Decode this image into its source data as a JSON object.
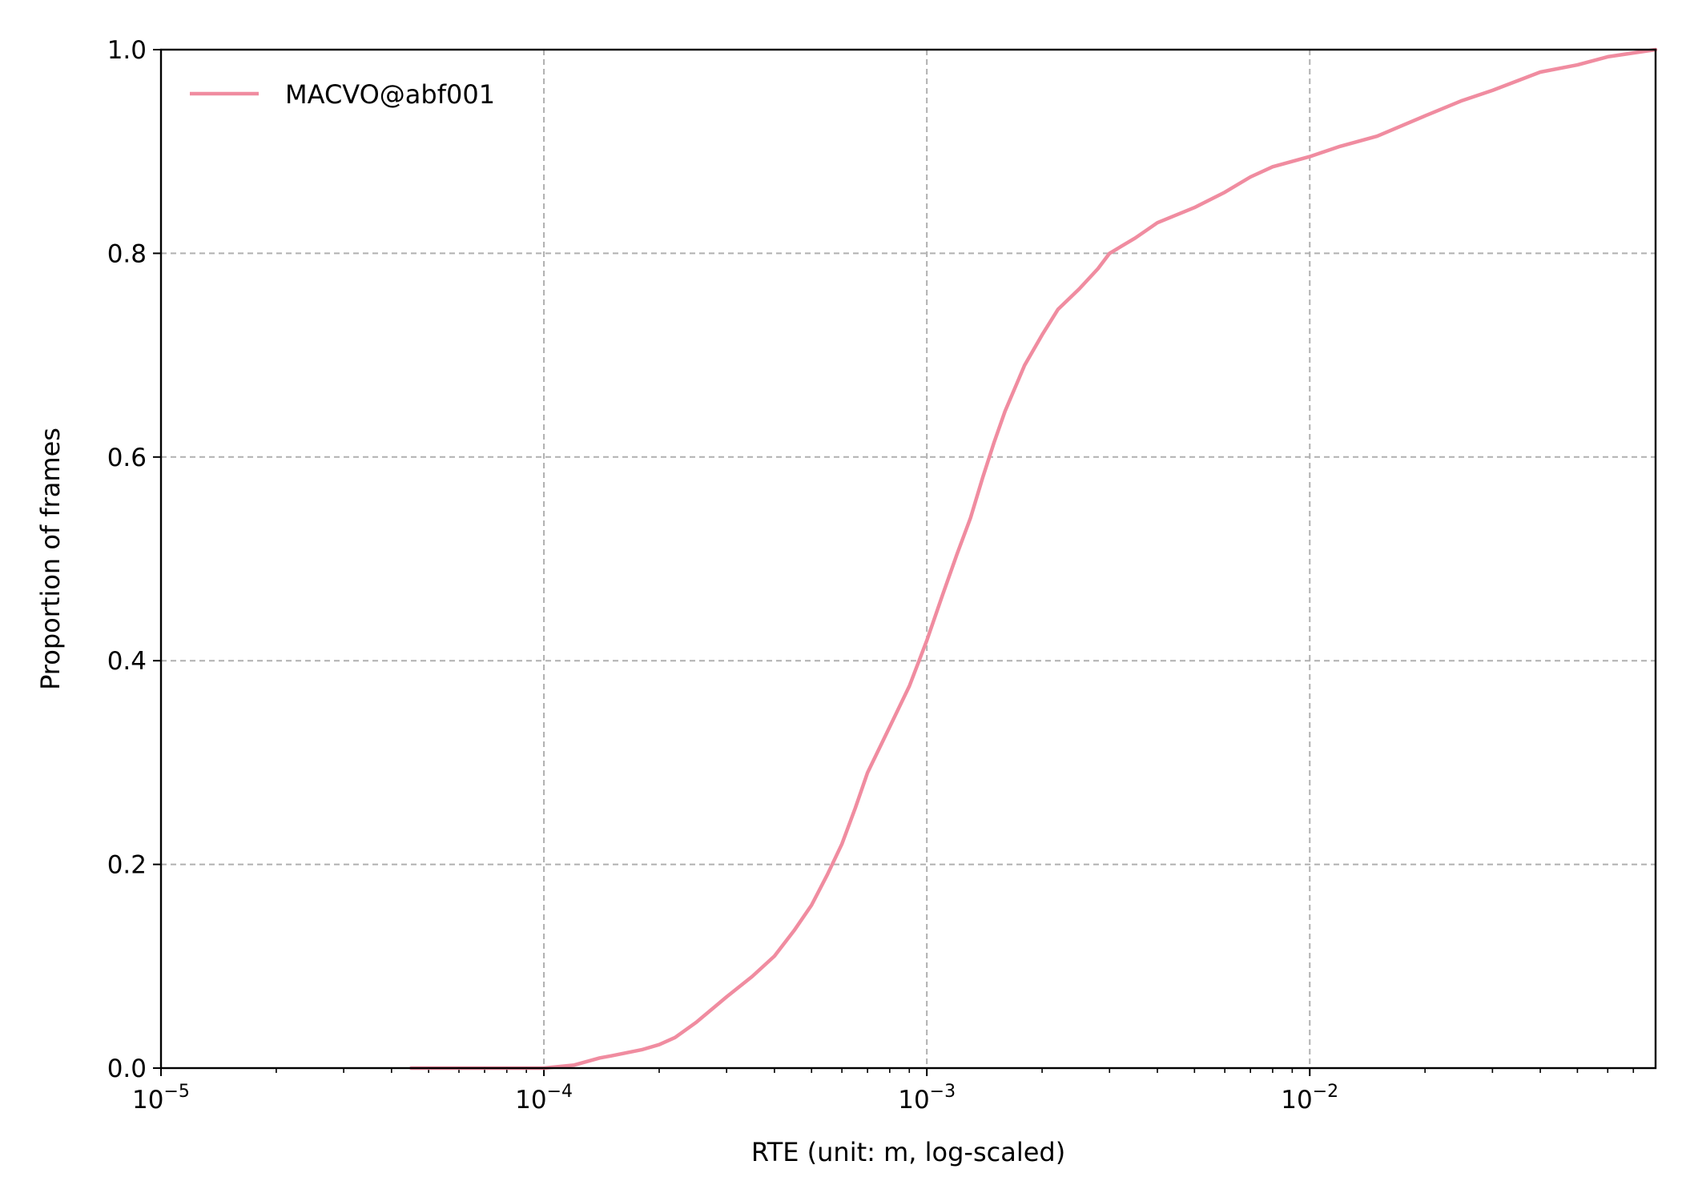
{
  "chart_data": {
    "type": "line",
    "xlabel": "RTE (unit: m, log-scaled)",
    "ylabel": "Proportion of frames",
    "x_scale": "log",
    "xlim": [
      1e-05,
      0.08
    ],
    "ylim": [
      0.0,
      1.0
    ],
    "grid": true,
    "legend_position": "upper-left",
    "x_ticks": [
      {
        "value": 1e-05,
        "base": "10",
        "exp": "−5"
      },
      {
        "value": 0.0001,
        "base": "10",
        "exp": "−4"
      },
      {
        "value": 0.001,
        "base": "10",
        "exp": "−3"
      },
      {
        "value": 0.01,
        "base": "10",
        "exp": "−2"
      }
    ],
    "y_ticks": [
      {
        "value": 0.0,
        "label": "0.0"
      },
      {
        "value": 0.2,
        "label": "0.2"
      },
      {
        "value": 0.4,
        "label": "0.4"
      },
      {
        "value": 0.6,
        "label": "0.6"
      },
      {
        "value": 0.8,
        "label": "0.8"
      },
      {
        "value": 1.0,
        "label": "1.0"
      }
    ],
    "series": [
      {
        "name": "MACVO@abf001",
        "color": "#f08ca0",
        "x": [
          4.5e-05,
          0.0001,
          0.00012,
          0.00014,
          0.00015,
          0.00018,
          0.0002,
          0.00022,
          0.00025,
          0.0003,
          0.00035,
          0.0004,
          0.00045,
          0.0005,
          0.00055,
          0.0006,
          0.00065,
          0.0007,
          0.0008,
          0.0009,
          0.001,
          0.0011,
          0.0012,
          0.0013,
          0.0014,
          0.0015,
          0.0016,
          0.0018,
          0.002,
          0.0022,
          0.0025,
          0.0028,
          0.003,
          0.0035,
          0.004,
          0.005,
          0.006,
          0.007,
          0.008,
          0.01,
          0.012,
          0.015,
          0.02,
          0.025,
          0.03,
          0.04,
          0.05,
          0.06,
          0.08
        ],
        "y": [
          0.0,
          0.0,
          0.003,
          0.01,
          0.012,
          0.018,
          0.023,
          0.03,
          0.045,
          0.07,
          0.09,
          0.11,
          0.135,
          0.16,
          0.19,
          0.22,
          0.255,
          0.29,
          0.335,
          0.375,
          0.42,
          0.465,
          0.505,
          0.54,
          0.58,
          0.615,
          0.645,
          0.69,
          0.72,
          0.745,
          0.765,
          0.785,
          0.8,
          0.815,
          0.83,
          0.845,
          0.86,
          0.875,
          0.885,
          0.895,
          0.905,
          0.915,
          0.935,
          0.95,
          0.96,
          0.978,
          0.985,
          0.993,
          1.0
        ]
      }
    ]
  }
}
